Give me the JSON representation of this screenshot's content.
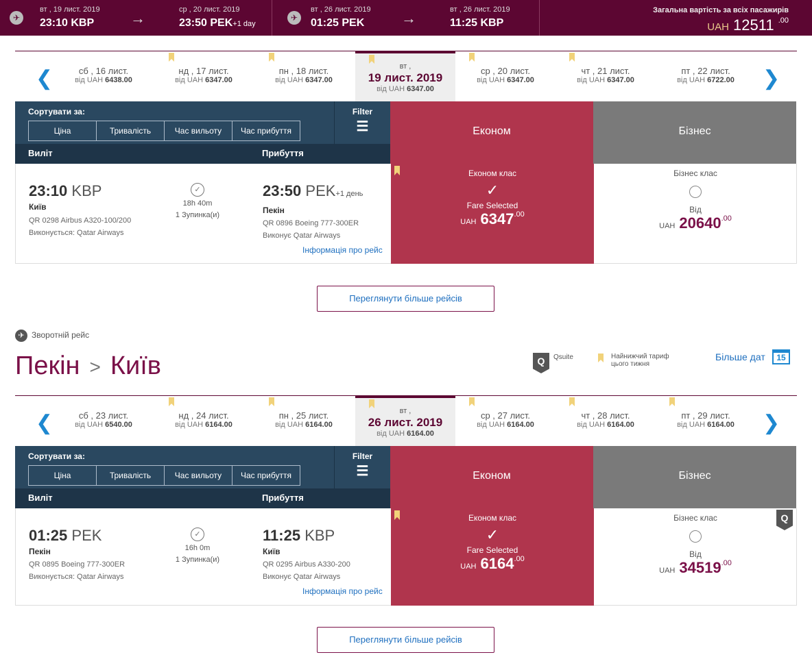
{
  "summary": {
    "segments": [
      {
        "dep_date": "вт , 19 лист. 2019",
        "dep_time": "23:10 KBP",
        "arr_date": "ср , 20 лист. 2019",
        "arr_time": "23:50 PEK",
        "arr_extra": "+1 day"
      },
      {
        "dep_date": "вт , 26 лист. 2019",
        "dep_time": "01:25 PEK",
        "arr_date": "вт , 26 лист. 2019",
        "arr_time": "11:25 KBP",
        "arr_extra": ""
      }
    ],
    "total_label": "Загальна вартість за всіх пасажирів",
    "total_currency": "UAH",
    "total_amount": "12511",
    "total_decimal": ".00"
  },
  "outbound": {
    "dates": [
      {
        "day": "сб , 16 лист.",
        "from_prefix": "від UAH",
        "price": "6438.00",
        "bookmark": false
      },
      {
        "day": "нд , 17 лист.",
        "from_prefix": "від UAH",
        "price": "6347.00",
        "bookmark": true
      },
      {
        "day": "пн , 18 лист.",
        "from_prefix": "від UAH",
        "price": "6347.00",
        "bookmark": true
      },
      {
        "day": "вт ,",
        "big": "19 лист. 2019",
        "from_prefix": "від UAH",
        "price": "6347.00",
        "bookmark": true,
        "selected": true
      },
      {
        "day": "ср , 20 лист.",
        "from_prefix": "від UAH",
        "price": "6347.00",
        "bookmark": true
      },
      {
        "day": "чт , 21 лист.",
        "from_prefix": "від UAH",
        "price": "6347.00",
        "bookmark": true
      },
      {
        "day": "пт , 22 лист.",
        "from_prefix": "від UAH",
        "price": "6722.00",
        "bookmark": false
      }
    ],
    "flight": {
      "dep_time": "23:10",
      "dep_code": "KBP",
      "dep_city": "Київ",
      "dep_flight": "QR 0298 Airbus A320-100/200",
      "dep_operator": "Виконується: Qatar Airways",
      "duration": "18h 40m",
      "stops": "1 Зупинка(и)",
      "arr_time": "23:50",
      "arr_code": "PEK",
      "arr_extra": "+1 день",
      "arr_city": "Пекін",
      "arr_flight": "QR 0896 Boeing 777-300ER",
      "arr_operator": "Виконує Qatar Airways",
      "eco_price": "6347",
      "bus_price": "20640"
    }
  },
  "inbound": {
    "dates": [
      {
        "day": "сб , 23 лист.",
        "from_prefix": "від UAH",
        "price": "6540.00",
        "bookmark": false
      },
      {
        "day": "нд , 24 лист.",
        "from_prefix": "від UAH",
        "price": "6164.00",
        "bookmark": true
      },
      {
        "day": "пн , 25 лист.",
        "from_prefix": "від UAH",
        "price": "6164.00",
        "bookmark": true
      },
      {
        "day": "вт ,",
        "big": "26 лист. 2019",
        "from_prefix": "від UAH",
        "price": "6164.00",
        "bookmark": true,
        "selected": true
      },
      {
        "day": "ср , 27 лист.",
        "from_prefix": "від UAH",
        "price": "6164.00",
        "bookmark": true
      },
      {
        "day": "чт , 28 лист.",
        "from_prefix": "від UAH",
        "price": "6164.00",
        "bookmark": true
      },
      {
        "day": "пт , 29 лист.",
        "from_prefix": "від UAH",
        "price": "6164.00",
        "bookmark": true
      }
    ],
    "flight": {
      "dep_time": "01:25",
      "dep_code": "PEK",
      "dep_city": "Пекін",
      "dep_flight": "QR 0895 Boeing 777-300ER",
      "dep_operator": "Виконується: Qatar Airways",
      "duration": "16h 0m",
      "stops": "1 Зупинка(и)",
      "arr_time": "11:25",
      "arr_code": "KBP",
      "arr_extra": "",
      "arr_city": "Київ",
      "arr_flight": "QR 0295 Airbus A330-200",
      "arr_operator": "Виконує Qatar Airways",
      "eco_price": "6164",
      "bus_price": "34519"
    }
  },
  "labels": {
    "sort_by": "Сортувати за:",
    "sort_tabs": [
      "Ціна",
      "Тривалість",
      "Час вильоту",
      "Час прибуття"
    ],
    "filter": "Filter",
    "departure": "Виліт",
    "arrival": "Прибуття",
    "economy": "Економ",
    "business": "Бізнес",
    "economy_class": "Економ клас",
    "business_class": "Бізнес клас",
    "fare_selected": "Fare Selected",
    "from": "Від",
    "currency": "UAH",
    "decimal": ".00",
    "flight_info": "Інформація про рейс",
    "more_flights": "Переглянути більше рейсів",
    "return_flight": "Зворотній рейс",
    "route_from": "Пекін",
    "route_to": "Київ",
    "qsuite": "Qsuite",
    "q_letter": "Q",
    "lowest_fare": "Найнижчий тариф цього тижня",
    "more_dates": "Більше дат",
    "cal_day": "15"
  },
  "colors": {
    "brand": "#5c0632",
    "economy": "#b0354d",
    "business": "#7a7a7a",
    "header": "#2a4860",
    "link": "#1e6fbf"
  }
}
